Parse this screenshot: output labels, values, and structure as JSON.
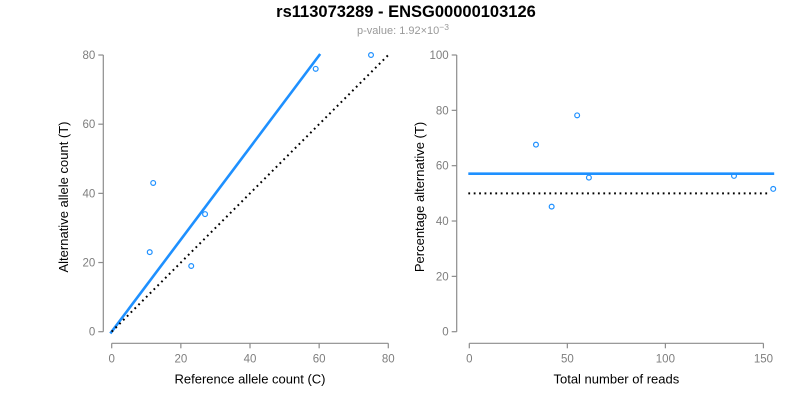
{
  "header": {
    "title": "rs113073289 - ENSG00000103126",
    "p_value_prefix": "p-value: ",
    "p_value_base": "1.92×10",
    "p_value_exponent": "−3"
  },
  "colors": {
    "accent_blue": "#1E90FF",
    "reference_black": "#000000",
    "axis_line_gray": "#8C8C8C",
    "tick_label_gray": "#7E7E7E",
    "axis_title_black": "#000000",
    "title_black": "#000000",
    "subtitle_gray": "#999999",
    "background": "#FFFFFF"
  },
  "chart_data": [
    {
      "type": "scatter",
      "panel": "left",
      "xlabel": "Reference allele count (C)",
      "ylabel": "Alternative allele count (T)",
      "xlim": [
        0,
        80
      ],
      "ylim": [
        0,
        80
      ],
      "xticks": [
        0,
        20,
        40,
        60,
        80
      ],
      "yticks": [
        0,
        20,
        40,
        60,
        80
      ],
      "grid": false,
      "legend": null,
      "points": [
        [
          11,
          23
        ],
        [
          12,
          43
        ],
        [
          23,
          19
        ],
        [
          27,
          34
        ],
        [
          59,
          76
        ],
        [
          75,
          80
        ]
      ],
      "lines": [
        {
          "name": "regression-line",
          "style": "solid",
          "color": "#1E90FF",
          "from": [
            -0.4,
            -0.5
          ],
          "to": [
            60.3,
            80.3
          ]
        },
        {
          "name": "identity-line",
          "style": "dotted",
          "color": "#000000",
          "from": [
            0,
            0
          ],
          "to": [
            80.3,
            80.3
          ]
        }
      ]
    },
    {
      "type": "scatter",
      "panel": "right",
      "xlabel": "Total number of reads",
      "ylabel": "Percentage alternative (T)",
      "xlim": [
        0,
        155
      ],
      "ylim": [
        0,
        100
      ],
      "xticks": [
        0,
        50,
        100,
        150
      ],
      "yticks": [
        0,
        20,
        40,
        60,
        80,
        100
      ],
      "grid": false,
      "legend": null,
      "points": [
        [
          34,
          67.6
        ],
        [
          42,
          45.2
        ],
        [
          55,
          78.2
        ],
        [
          61,
          55.7
        ],
        [
          135,
          56.3
        ],
        [
          155,
          51.6
        ]
      ],
      "lines": [
        {
          "name": "mean-line",
          "style": "solid",
          "color": "#1E90FF",
          "from": [
            -0.5,
            57.1
          ],
          "to": [
            155.5,
            57.1
          ]
        },
        {
          "name": "fifty-percent-line",
          "style": "dotted",
          "color": "#000000",
          "from": [
            -0.5,
            50
          ],
          "to": [
            153.5,
            50
          ]
        }
      ]
    }
  ]
}
